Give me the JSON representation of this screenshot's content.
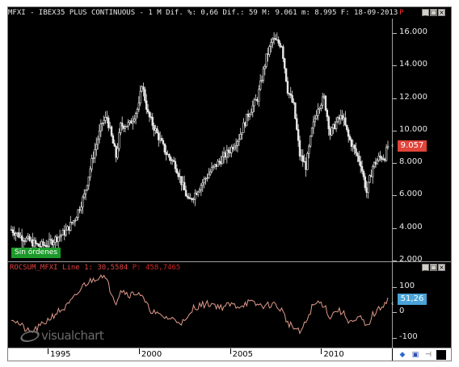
{
  "header": {
    "title": "MFXI - IBEX35 PLUS CONTINUOUS - 1 M Dif. %: 0,66 Dif.: 59 M: 9.061 m: 8.995 F: 18-09-2013",
    "p_marker": "P"
  },
  "window_buttons": {
    "minimize": "_",
    "maximize": "□",
    "close": "×"
  },
  "price_axis": {
    "labels": [
      "16.000",
      "14.000",
      "12.000",
      "10.000",
      "8.000",
      "6.000",
      "4.000",
      "2.000"
    ]
  },
  "price_badge": "9.057",
  "indicator": {
    "title": "ROCSUM_MFXI Line 1: 30,5584",
    "p_label": "P: 458,7465",
    "axis_labels": [
      "100",
      "0",
      "-100"
    ],
    "badge": "51,26"
  },
  "orders_badge": "Sin órdenes",
  "logo_text": "visualchart",
  "x_axis": {
    "labels": [
      "1995",
      "2000",
      "2005",
      "2010"
    ]
  },
  "colors": {
    "background": "#000000",
    "candles": "#e8e8e8",
    "indicator_line": "#e09a8a",
    "price_badge": "#e0443a",
    "indicator_badge": "#4aa3d8",
    "orders_badge": "#1c9a2a"
  },
  "chart_data": [
    {
      "type": "line",
      "series_style": "price-bars",
      "x": [
        "1993-01",
        "1993-07",
        "1994-01",
        "1994-07",
        "1995-01",
        "1995-07",
        "1996-01",
        "1996-07",
        "1997-01",
        "1997-07",
        "1998-01",
        "1998-04",
        "1998-10",
        "1999-01",
        "1999-07",
        "2000-01",
        "2000-03",
        "2000-07",
        "2001-01",
        "2001-07",
        "2002-01",
        "2002-07",
        "2002-10",
        "2003-01",
        "2003-07",
        "2004-01",
        "2004-07",
        "2005-01",
        "2005-07",
        "2006-01",
        "2006-07",
        "2007-01",
        "2007-05",
        "2007-11",
        "2008-03",
        "2008-07",
        "2008-11",
        "2009-03",
        "2009-07",
        "2009-11",
        "2010-03",
        "2010-07",
        "2010-11",
        "2011-03",
        "2011-07",
        "2011-11",
        "2012-03",
        "2012-07",
        "2012-11",
        "2013-03",
        "2013-07",
        "2013-09"
      ],
      "y": [
        3.9,
        3.5,
        3.2,
        2.9,
        3.0,
        3.4,
        3.8,
        4.6,
        6.0,
        8.5,
        10.5,
        10.8,
        8.4,
        10.3,
        10.4,
        11.5,
        12.9,
        11.0,
        9.8,
        8.6,
        7.9,
        6.3,
        5.6,
        6.0,
        6.8,
        7.6,
        8.2,
        8.8,
        9.6,
        11.0,
        12.0,
        14.5,
        15.6,
        15.3,
        12.5,
        11.5,
        8.5,
        7.8,
        10.0,
        11.5,
        12.0,
        9.8,
        10.5,
        10.9,
        9.6,
        8.8,
        8.0,
        6.2,
        7.8,
        8.3,
        8.4,
        9.057
      ],
      "ylim": [
        2000,
        16500
      ],
      "y_units": "index points (thousands shown as 2.000 … 16.000)",
      "xlim": [
        "1993-01",
        "2013-09"
      ]
    },
    {
      "type": "line",
      "name": "ROCSUM_MFXI Line 1",
      "x": [
        "1993-01",
        "1993-07",
        "1994-01",
        "1994-07",
        "1995-01",
        "1995-07",
        "1996-01",
        "1996-07",
        "1997-01",
        "1997-07",
        "1998-01",
        "1998-04",
        "1998-10",
        "1999-01",
        "1999-07",
        "2000-01",
        "2000-03",
        "2000-07",
        "2001-01",
        "2001-07",
        "2002-01",
        "2002-07",
        "2002-10",
        "2003-01",
        "2003-07",
        "2004-01",
        "2004-07",
        "2005-01",
        "2005-07",
        "2006-01",
        "2006-07",
        "2007-01",
        "2007-05",
        "2007-11",
        "2008-03",
        "2008-07",
        "2008-11",
        "2009-03",
        "2009-07",
        "2009-11",
        "2010-03",
        "2010-07",
        "2010-11",
        "2011-03",
        "2011-07",
        "2011-11",
        "2012-03",
        "2012-07",
        "2012-11",
        "2013-03",
        "2013-07",
        "2013-09"
      ],
      "y": [
        -20,
        -50,
        -80,
        -60,
        -30,
        0,
        20,
        60,
        110,
        130,
        150,
        120,
        40,
        90,
        70,
        80,
        60,
        20,
        -10,
        -20,
        -30,
        -40,
        -20,
        20,
        30,
        35,
        20,
        30,
        25,
        40,
        30,
        25,
        35,
        10,
        -40,
        -60,
        -80,
        -40,
        20,
        40,
        30,
        -20,
        10,
        0,
        -30,
        -40,
        -20,
        -60,
        -10,
        10,
        40,
        51.26
      ],
      "ylim": [
        -120,
        160
      ],
      "axis_ticks": [
        100,
        0,
        -100
      ]
    }
  ]
}
